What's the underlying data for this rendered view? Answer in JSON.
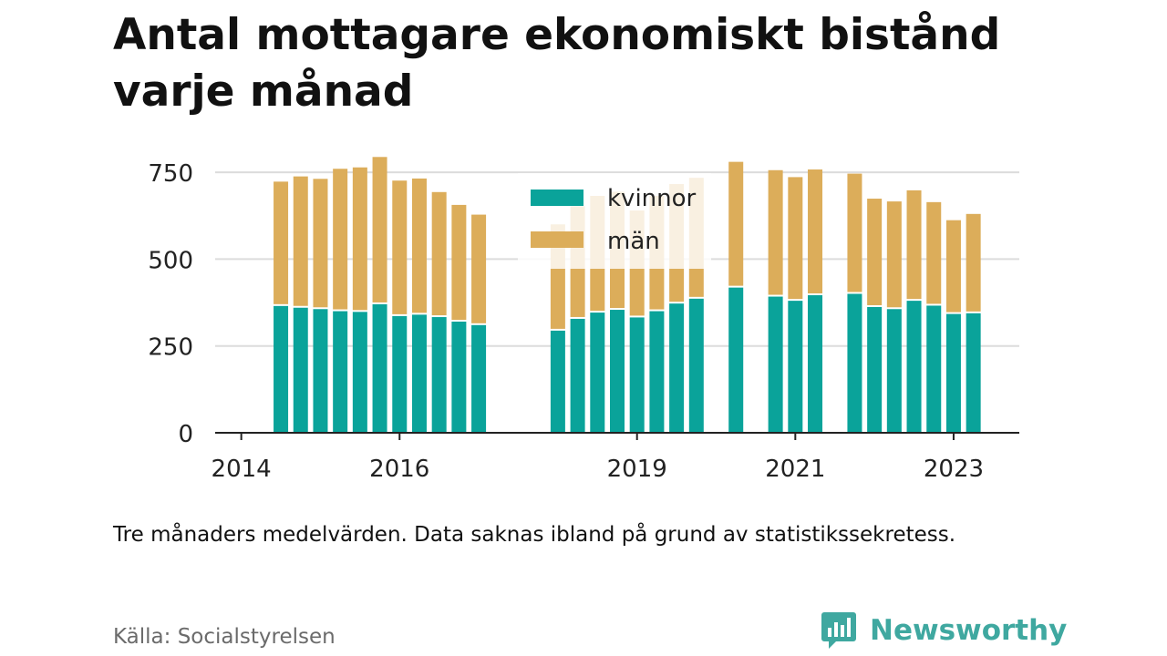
{
  "title": "Antal mottagare ekonomiskt bistånd varje månad",
  "note": "Tre månaders medelvärden. Data saknas ibland på grund av statistikssekretess.",
  "source": "Källa: Socialstyrelsen",
  "brand": {
    "name": "Newsworthy",
    "color": "#3fa8a0",
    "icon": "bar-chart-speech-bubble-icon"
  },
  "chart_data": {
    "type": "bar",
    "stacked": true,
    "ylim": [
      0,
      800
    ],
    "yticks": [
      0,
      250,
      500,
      750
    ],
    "xticks": [
      {
        "label": "2014",
        "x": 2014.0
      },
      {
        "label": "2016",
        "x": 2016.0
      },
      {
        "label": "2019",
        "x": 2019.0
      },
      {
        "label": "2021",
        "x": 2021.0
      },
      {
        "label": "2023",
        "x": 2023.0
      }
    ],
    "xlim": [
      2013.67,
      2023.83
    ],
    "grid": true,
    "legend_position": "top-center",
    "series": [
      {
        "name": "kvinnor",
        "color": "#0aa39a"
      },
      {
        "name": "män",
        "color": "#dcad5a"
      }
    ],
    "bars": [
      {
        "x": 2014.5,
        "kvinnor": 365,
        "män": 358
      },
      {
        "x": 2014.75,
        "kvinnor": 360,
        "män": 378
      },
      {
        "x": 2015.0,
        "kvinnor": 356,
        "män": 375
      },
      {
        "x": 2015.25,
        "kvinnor": 350,
        "män": 410
      },
      {
        "x": 2015.5,
        "kvinnor": 348,
        "män": 416
      },
      {
        "x": 2015.75,
        "kvinnor": 370,
        "män": 424
      },
      {
        "x": 2016.0,
        "kvinnor": 336,
        "män": 390
      },
      {
        "x": 2016.25,
        "kvinnor": 340,
        "män": 392
      },
      {
        "x": 2016.5,
        "kvinnor": 333,
        "män": 360
      },
      {
        "x": 2016.75,
        "kvinnor": 320,
        "män": 336
      },
      {
        "x": 2017.0,
        "kvinnor": 310,
        "män": 318
      },
      {
        "x": 2018.0,
        "kvinnor": 294,
        "män": 306
      },
      {
        "x": 2018.25,
        "kvinnor": 328,
        "män": 324
      },
      {
        "x": 2018.5,
        "kvinnor": 346,
        "män": 336
      },
      {
        "x": 2018.75,
        "kvinnor": 354,
        "män": 340
      },
      {
        "x": 2019.0,
        "kvinnor": 332,
        "män": 308
      },
      {
        "x": 2019.25,
        "kvinnor": 350,
        "män": 332
      },
      {
        "x": 2019.5,
        "kvinnor": 372,
        "män": 344
      },
      {
        "x": 2019.75,
        "kvinnor": 386,
        "män": 348
      },
      {
        "x": 2020.25,
        "kvinnor": 418,
        "män": 362
      },
      {
        "x": 2020.75,
        "kvinnor": 392,
        "män": 364
      },
      {
        "x": 2021.0,
        "kvinnor": 380,
        "män": 356
      },
      {
        "x": 2021.25,
        "kvinnor": 396,
        "män": 362
      },
      {
        "x": 2021.75,
        "kvinnor": 400,
        "män": 346
      },
      {
        "x": 2022.0,
        "kvinnor": 362,
        "män": 312
      },
      {
        "x": 2022.25,
        "kvinnor": 356,
        "män": 310
      },
      {
        "x": 2022.5,
        "kvinnor": 380,
        "män": 318
      },
      {
        "x": 2022.75,
        "kvinnor": 366,
        "män": 298
      },
      {
        "x": 2023.0,
        "kvinnor": 342,
        "män": 270
      },
      {
        "x": 2023.25,
        "kvinnor": 344,
        "män": 286
      }
    ]
  }
}
